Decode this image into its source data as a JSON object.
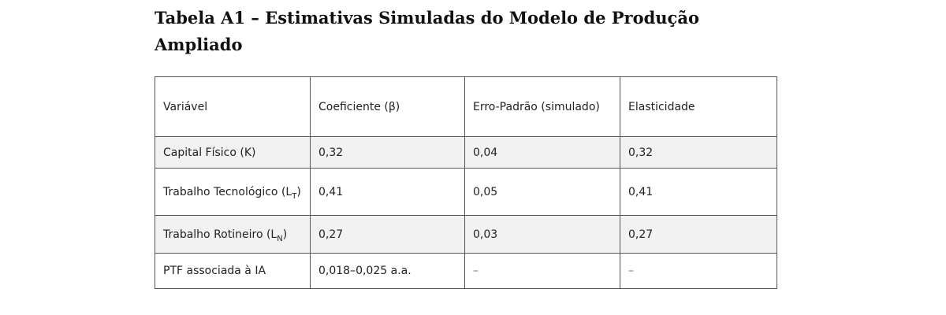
{
  "title": "Tabela A1 – Estimativas Simuladas do Modelo de Produção Ampliado",
  "table": {
    "headers": [
      "Variável",
      "Coeficiente (β)",
      "Erro-Padrão (simulado)",
      "Elasticidade"
    ],
    "rows": [
      {
        "variable": "Capital Físico (K)",
        "coefficient": "0,32",
        "std_error": "0,04",
        "elasticity": "0,32"
      },
      {
        "variable_prefix": "Trabalho Tecnológico (L",
        "variable_sub": "T",
        "variable_suffix": ")",
        "coefficient": "0,41",
        "std_error": "0,05",
        "elasticity": "0,41"
      },
      {
        "variable_prefix": "Trabalho Rotineiro (L",
        "variable_sub": "N",
        "variable_suffix": ")",
        "coefficient": "0,27",
        "std_error": "0,03",
        "elasticity": "0,27"
      },
      {
        "variable": "PTF associada à IA",
        "coefficient": "0,018–0,025 a.a.",
        "std_error": "–",
        "elasticity": "–"
      }
    ]
  }
}
